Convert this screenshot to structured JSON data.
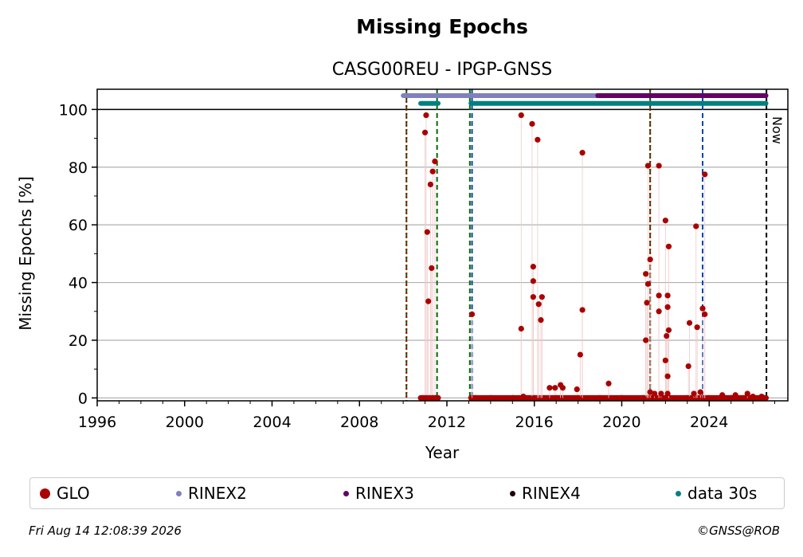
{
  "chart_data": {
    "type": "scatter",
    "title": "Missing Epochs",
    "subtitle": "CASG00REU - IPGP-GNSS",
    "xlabel": "Year",
    "ylabel": "Missing Epochs [%]",
    "xlim": [
      1996,
      2027.6
    ],
    "ylim": [
      -1,
      107
    ],
    "x_ticks": [
      1996,
      2000,
      2004,
      2008,
      2012,
      2016,
      2020,
      2024
    ],
    "x_tick_labels": [
      "1996",
      "2000",
      "2004",
      "2008",
      "2012",
      "2016",
      "2020",
      "2024"
    ],
    "y_ticks": [
      0,
      20,
      40,
      60,
      80,
      100
    ],
    "y_tick_labels": [
      "0",
      "20",
      "40",
      "60",
      "80",
      "100"
    ],
    "grid": "horizontal",
    "now_label": "Now",
    "now_x": 2026.62,
    "series": [
      {
        "name": "GLO",
        "color": "#aa0000",
        "points": [
          [
            2011.05,
            98
          ],
          [
            2011.0,
            92
          ],
          [
            2011.1,
            57.5
          ],
          [
            2011.15,
            33.5
          ],
          [
            2011.25,
            74
          ],
          [
            2011.35,
            78.5
          ],
          [
            2011.3,
            45
          ],
          [
            2011.45,
            82
          ],
          [
            2010.9,
            0
          ],
          [
            2011.05,
            0
          ],
          [
            2011.2,
            0
          ],
          [
            2011.35,
            0
          ],
          [
            2011.5,
            0
          ],
          [
            2013.15,
            29
          ],
          [
            2015.4,
            98
          ],
          [
            2015.9,
            95
          ],
          [
            2016.15,
            89.5
          ],
          [
            2015.4,
            24
          ],
          [
            2015.95,
            45.5
          ],
          [
            2015.95,
            40.5
          ],
          [
            2015.95,
            35
          ],
          [
            2016.2,
            32.5
          ],
          [
            2016.35,
            35
          ],
          [
            2016.3,
            27
          ],
          [
            2015.5,
            0.5
          ],
          [
            2016.7,
            3.5
          ],
          [
            2016.95,
            3.5
          ],
          [
            2017.2,
            4.5
          ],
          [
            2017.3,
            3.5
          ],
          [
            2017.95,
            3
          ],
          [
            2018.2,
            85
          ],
          [
            2018.2,
            30.5
          ],
          [
            2018.1,
            15
          ],
          [
            2019.4,
            5
          ],
          [
            2021.1,
            43
          ],
          [
            2021.15,
            33
          ],
          [
            2021.2,
            39.5
          ],
          [
            2021.3,
            48
          ],
          [
            2021.2,
            80.5
          ],
          [
            2021.1,
            20
          ],
          [
            2021.7,
            80.5
          ],
          [
            2021.7,
            35.5
          ],
          [
            2021.7,
            30
          ],
          [
            2022.0,
            61.5
          ],
          [
            2022.15,
            52.5
          ],
          [
            2022.1,
            35.5
          ],
          [
            2022.1,
            31.5
          ],
          [
            2022.15,
            23.5
          ],
          [
            2022.05,
            21.5
          ],
          [
            2022.0,
            13
          ],
          [
            2022.1,
            7.5
          ],
          [
            2021.3,
            2
          ],
          [
            2021.5,
            1.5
          ],
          [
            2021.8,
            1.5
          ],
          [
            2022.1,
            1.5
          ],
          [
            2023.1,
            26
          ],
          [
            2023.05,
            11
          ],
          [
            2023.4,
            59.5
          ],
          [
            2023.45,
            24.5
          ],
          [
            2023.7,
            31
          ],
          [
            2023.8,
            77.5
          ],
          [
            2023.8,
            29
          ],
          [
            2023.3,
            1.5
          ],
          [
            2023.6,
            2
          ],
          [
            2024.6,
            1
          ],
          [
            2025.2,
            1
          ],
          [
            2025.75,
            1.5
          ],
          [
            2026.0,
            0.5
          ],
          [
            2026.4,
            0.5
          ],
          [
            2013.3,
            0
          ],
          [
            2014.0,
            0
          ],
          [
            2015.0,
            0
          ],
          [
            2016.0,
            0
          ],
          [
            2017.0,
            0
          ],
          [
            2018.0,
            0
          ],
          [
            2019.0,
            0
          ],
          [
            2020.0,
            0
          ],
          [
            2021.0,
            0
          ],
          [
            2022.0,
            0
          ],
          [
            2023.0,
            0
          ],
          [
            2024.0,
            0
          ],
          [
            2025.0,
            0
          ],
          [
            2026.0,
            0
          ],
          [
            2026.5,
            0
          ]
        ],
        "zero_ranges": [
          [
            2010.8,
            2011.6
          ],
          [
            2013.1,
            2026.6
          ]
        ]
      },
      {
        "name": "RINEX2",
        "color": "#8080c0",
        "y": 104.8,
        "ranges": [
          [
            2010.0,
            2018.9
          ]
        ]
      },
      {
        "name": "RINEX3",
        "color": "#660066",
        "y": 104.8,
        "ranges": [
          [
            2018.9,
            2026.6
          ]
        ]
      },
      {
        "name": "RINEX4",
        "color": "#1a0011",
        "y": 104.8,
        "ranges": []
      },
      {
        "name": "data 30s",
        "color": "#008080",
        "y": 102.1,
        "ranges": [
          [
            2010.8,
            2011.6
          ],
          [
            2013.1,
            2026.6
          ]
        ]
      }
    ],
    "vertical_markers": [
      {
        "x": 2010.15,
        "color": "#006600",
        "style": "dashed"
      },
      {
        "x": 2010.15,
        "color": "#aa0000",
        "style": "dotted"
      },
      {
        "x": 2011.55,
        "color": "#006600",
        "style": "dashed"
      },
      {
        "x": 2013.05,
        "color": "#006600",
        "style": "dashed"
      },
      {
        "x": 2013.15,
        "color": "#0044aa",
        "style": "dashed"
      },
      {
        "x": 2021.3,
        "color": "#006600",
        "style": "dashed"
      },
      {
        "x": 2021.3,
        "color": "#aa0000",
        "style": "dotted"
      },
      {
        "x": 2023.7,
        "color": "#0044aa",
        "style": "dashed"
      },
      {
        "x": 2026.62,
        "color": "#000000",
        "style": "dashed"
      }
    ],
    "legend_position": "bottom"
  },
  "footer": {
    "timestamp": "Fri Aug 14 12:08:39 2026",
    "copyright": "©GNSS@ROB"
  },
  "legend": [
    {
      "label": "GLO",
      "color": "#aa0000",
      "size": 13
    },
    {
      "label": "RINEX2",
      "color": "#8080c0",
      "size": 7
    },
    {
      "label": "RINEX3",
      "color": "#660066",
      "size": 7
    },
    {
      "label": "RINEX4",
      "color": "#1a0011",
      "size": 7
    },
    {
      "label": "data 30s",
      "color": "#008080",
      "size": 7
    }
  ]
}
